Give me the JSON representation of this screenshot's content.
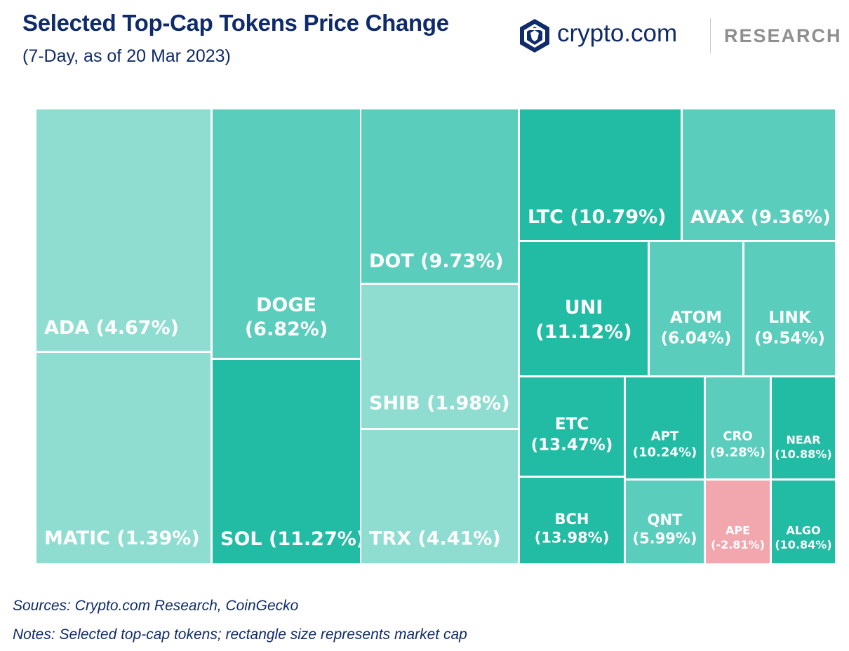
{
  "header": {
    "title": "Selected Top-Cap Tokens Price Change",
    "subtitle": "(7-Day, as of 20 Mar 2023)"
  },
  "brand": {
    "logo_icon": "crypto-com-lion-shield-icon",
    "name": "crypto.com",
    "section": "RESEARCH"
  },
  "colors": {
    "low_positive": "#8fddd1",
    "mid_positive": "#5acdbc",
    "high_positive": "#22bba4",
    "negative": "#f2a6ae",
    "title": "#0f2b6b"
  },
  "chart_data": {
    "type": "treemap",
    "title": "Selected Top-Cap Tokens Price Change",
    "subtitle": "(7-Day, as of 20 Mar 2023)",
    "value_meaning": "rectangle size represents market cap; label shows 7-day price change",
    "items": [
      {
        "token": "ADA",
        "change_pct": 4.67,
        "label": "ADA (4.67%)"
      },
      {
        "token": "MATIC",
        "change_pct": 1.39,
        "label": "MATIC (1.39%)"
      },
      {
        "token": "DOGE",
        "change_pct": 6.82,
        "label": [
          "DOGE",
          "(6.82%)"
        ]
      },
      {
        "token": "SOL",
        "change_pct": 11.27,
        "label": "SOL (11.27%)"
      },
      {
        "token": "DOT",
        "change_pct": 9.73,
        "label": "DOT (9.73%)"
      },
      {
        "token": "SHIB",
        "change_pct": 1.98,
        "label": "SHIB (1.98%)"
      },
      {
        "token": "TRX",
        "change_pct": 4.41,
        "label": "TRX (4.41%)"
      },
      {
        "token": "LTC",
        "change_pct": 10.79,
        "label": "LTC (10.79%)"
      },
      {
        "token": "AVAX",
        "change_pct": 9.36,
        "label": "AVAX (9.36%)"
      },
      {
        "token": "UNI",
        "change_pct": 11.12,
        "label": [
          "UNI",
          "(11.12%)"
        ]
      },
      {
        "token": "ATOM",
        "change_pct": 6.04,
        "label": [
          "ATOM",
          "(6.04%)"
        ]
      },
      {
        "token": "LINK",
        "change_pct": 9.54,
        "label": [
          "LINK",
          "(9.54%)"
        ]
      },
      {
        "token": "ETC",
        "change_pct": 13.47,
        "label": [
          "ETC",
          "(13.47%)"
        ]
      },
      {
        "token": "APT",
        "change_pct": 10.24,
        "label": [
          "APT",
          "(10.24%)"
        ]
      },
      {
        "token": "CRO",
        "change_pct": 9.28,
        "label": [
          "CRO",
          "(9.28%)"
        ]
      },
      {
        "token": "NEAR",
        "change_pct": 10.88,
        "label": [
          "NEAR",
          "(10.88%)"
        ]
      },
      {
        "token": "BCH",
        "change_pct": 13.98,
        "label": [
          "BCH",
          "(13.98%)"
        ]
      },
      {
        "token": "QNT",
        "change_pct": 5.99,
        "label": [
          "QNT",
          "(5.99%)"
        ]
      },
      {
        "token": "APE",
        "change_pct": -2.81,
        "label": [
          "APE",
          "(-2.81%)"
        ]
      },
      {
        "token": "ALGO",
        "change_pct": 10.84,
        "label": [
          "ALGO",
          "(10.84%)"
        ]
      }
    ]
  },
  "footer": {
    "sources": "Sources: Crypto.com Research, CoinGecko",
    "notes": "Notes: Selected top-cap tokens; rectangle size represents market cap"
  }
}
